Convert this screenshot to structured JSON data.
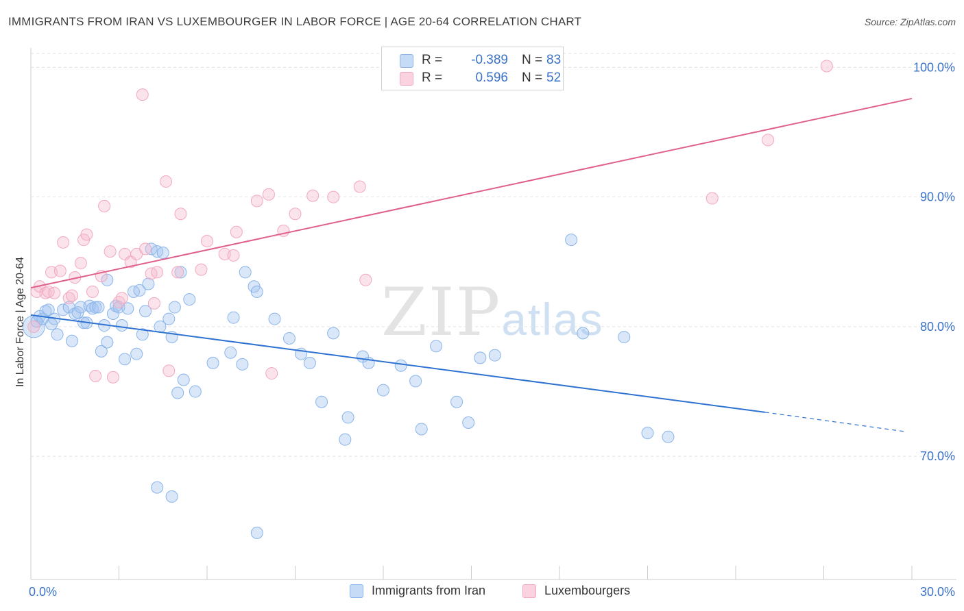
{
  "header": {
    "title": "IMMIGRANTS FROM IRAN VS LUXEMBOURGER IN LABOR FORCE | AGE 20-64 CORRELATION CHART",
    "source": "Source: ZipAtlas.com"
  },
  "watermark": {
    "zip": "ZIP",
    "atlas": "atlas"
  },
  "legend": {
    "rows": [
      {
        "r_label": "R =",
        "r_value": "-0.389",
        "n_label": "N =",
        "n_value": "83",
        "color": "#8ab4ea"
      },
      {
        "r_label": "R =",
        "r_value": "0.596",
        "n_label": "N =",
        "n_value": "52",
        "color": "#f2a8bf"
      }
    ]
  },
  "bottom_legend": {
    "items": [
      {
        "label": "Immigrants from Iran",
        "color": "#8ab4ea"
      },
      {
        "label": "Luxembourgers",
        "color": "#f2a8bf"
      }
    ]
  },
  "chart_data": {
    "type": "scatter",
    "title": "IMMIGRANTS FROM IRAN VS LUXEMBOURGER IN LABOR FORCE | AGE 20-64 CORRELATION CHART",
    "xlabel": "",
    "ylabel": "In Labor Force | Age 20-64",
    "xlim": [
      0,
      30
    ],
    "ylim": [
      60.5,
      101.5
    ],
    "x_tick_labels": [
      "0.0%",
      "30.0%"
    ],
    "y_ticks": [
      70,
      80,
      90,
      100
    ],
    "y_tick_labels": [
      "70.0%",
      "80.0%",
      "90.0%",
      "100.0%"
    ],
    "grid": true,
    "series": [
      {
        "name": "Immigrants from Iran",
        "color": "#8ab4ea",
        "line_color": "#2e72d2",
        "trend": {
          "x0": 0,
          "y0": 80.9,
          "x1": 25.0,
          "y1": 73.4,
          "dashed_to_x": 29.8,
          "dashed_to_y": 71.9
        },
        "points": [
          [
            0.1,
            80.0
          ],
          [
            0.2,
            80.4
          ],
          [
            0.3,
            80.8
          ],
          [
            0.4,
            80.6
          ],
          [
            0.5,
            81.2
          ],
          [
            0.6,
            81.3
          ],
          [
            0.7,
            80.2
          ],
          [
            0.8,
            80.6
          ],
          [
            0.9,
            79.4
          ],
          [
            1.1,
            81.3
          ],
          [
            1.3,
            81.5
          ],
          [
            1.4,
            78.9
          ],
          [
            1.5,
            81.0
          ],
          [
            1.6,
            81.1
          ],
          [
            1.7,
            81.5
          ],
          [
            1.8,
            80.3
          ],
          [
            1.9,
            80.3
          ],
          [
            2.0,
            81.6
          ],
          [
            2.1,
            81.4
          ],
          [
            2.2,
            81.5
          ],
          [
            2.3,
            81.5
          ],
          [
            2.4,
            78.1
          ],
          [
            2.5,
            80.1
          ],
          [
            2.6,
            78.8
          ],
          [
            2.6,
            83.6
          ],
          [
            2.8,
            81.0
          ],
          [
            2.9,
            81.6
          ],
          [
            3.0,
            81.5
          ],
          [
            3.1,
            80.1
          ],
          [
            3.2,
            77.5
          ],
          [
            3.3,
            81.4
          ],
          [
            3.5,
            82.7
          ],
          [
            3.6,
            77.9
          ],
          [
            3.7,
            82.8
          ],
          [
            3.8,
            79.4
          ],
          [
            3.9,
            81.2
          ],
          [
            4.0,
            83.3
          ],
          [
            4.1,
            86.0
          ],
          [
            4.3,
            85.8
          ],
          [
            4.4,
            80.0
          ],
          [
            4.5,
            85.7
          ],
          [
            4.7,
            80.6
          ],
          [
            4.8,
            79.2
          ],
          [
            4.9,
            81.5
          ],
          [
            5.0,
            74.9
          ],
          [
            5.1,
            84.2
          ],
          [
            5.2,
            75.9
          ],
          [
            5.4,
            82.1
          ],
          [
            5.6,
            75.0
          ],
          [
            6.2,
            77.2
          ],
          [
            6.8,
            78.0
          ],
          [
            6.9,
            80.7
          ],
          [
            7.2,
            77.1
          ],
          [
            7.3,
            84.2
          ],
          [
            7.6,
            83.1
          ],
          [
            7.7,
            82.7
          ],
          [
            8.3,
            80.6
          ],
          [
            8.8,
            79.1
          ],
          [
            9.2,
            77.9
          ],
          [
            9.5,
            77.2
          ],
          [
            9.9,
            74.2
          ],
          [
            10.3,
            79.5
          ],
          [
            10.7,
            71.3
          ],
          [
            10.8,
            73.0
          ],
          [
            11.3,
            77.7
          ],
          [
            11.5,
            77.2
          ],
          [
            12.0,
            75.1
          ],
          [
            12.6,
            77.0
          ],
          [
            13.1,
            75.8
          ],
          [
            13.3,
            72.1
          ],
          [
            13.8,
            78.5
          ],
          [
            14.5,
            74.2
          ],
          [
            14.9,
            72.6
          ],
          [
            15.3,
            77.6
          ],
          [
            15.8,
            77.8
          ],
          [
            18.4,
            86.7
          ],
          [
            18.8,
            79.5
          ],
          [
            20.2,
            79.2
          ],
          [
            21.0,
            71.8
          ],
          [
            21.7,
            71.5
          ],
          [
            4.3,
            67.6
          ],
          [
            4.8,
            66.9
          ],
          [
            7.7,
            64.1
          ]
        ]
      },
      {
        "name": "Luxembourgers",
        "color": "#f2a8bf",
        "line_color": "#e0608a",
        "trend": {
          "x0": 0,
          "y0": 83.0,
          "x1": 30.0,
          "y1": 97.6
        },
        "points": [
          [
            0.1,
            80.0
          ],
          [
            0.2,
            82.7
          ],
          [
            0.3,
            83.1
          ],
          [
            0.5,
            82.6
          ],
          [
            0.6,
            82.7
          ],
          [
            0.7,
            84.2
          ],
          [
            0.8,
            82.6
          ],
          [
            1.0,
            84.3
          ],
          [
            1.1,
            86.5
          ],
          [
            1.3,
            82.2
          ],
          [
            1.4,
            82.4
          ],
          [
            1.5,
            83.8
          ],
          [
            1.7,
            84.9
          ],
          [
            1.8,
            86.7
          ],
          [
            1.9,
            87.1
          ],
          [
            2.1,
            82.7
          ],
          [
            2.2,
            76.2
          ],
          [
            2.4,
            83.9
          ],
          [
            2.5,
            89.3
          ],
          [
            2.7,
            85.8
          ],
          [
            2.8,
            76.1
          ],
          [
            3.0,
            81.9
          ],
          [
            3.1,
            82.2
          ],
          [
            3.2,
            85.6
          ],
          [
            3.4,
            85.0
          ],
          [
            3.6,
            85.6
          ],
          [
            3.8,
            97.9
          ],
          [
            3.9,
            86.0
          ],
          [
            4.1,
            84.1
          ],
          [
            4.2,
            81.8
          ],
          [
            4.3,
            84.2
          ],
          [
            4.6,
            91.2
          ],
          [
            4.7,
            76.6
          ],
          [
            5.0,
            84.2
          ],
          [
            5.1,
            88.7
          ],
          [
            5.8,
            84.4
          ],
          [
            6.0,
            86.6
          ],
          [
            6.6,
            85.6
          ],
          [
            6.9,
            85.5
          ],
          [
            7.0,
            87.3
          ],
          [
            7.7,
            89.7
          ],
          [
            8.1,
            90.2
          ],
          [
            8.2,
            76.4
          ],
          [
            8.6,
            87.4
          ],
          [
            9.0,
            88.7
          ],
          [
            9.6,
            90.1
          ],
          [
            10.3,
            90.0
          ],
          [
            11.2,
            90.8
          ],
          [
            11.4,
            83.6
          ],
          [
            23.2,
            89.9
          ],
          [
            25.1,
            94.4
          ],
          [
            27.1,
            100.1
          ]
        ]
      }
    ]
  }
}
